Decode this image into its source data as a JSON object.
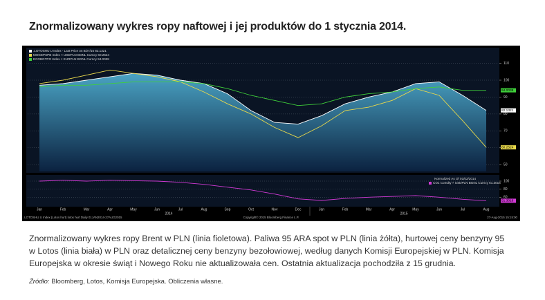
{
  "title": "Znormalizowany wykres ropy naftowej i jej produktów do 1 stycznia 2014.",
  "chart_data": [
    {
      "type": "line",
      "categories": [
        "Jan",
        "Feb",
        "Mar",
        "Apr",
        "May",
        "Jun",
        "Jul",
        "Aug",
        "Sep",
        "Oct",
        "Nov",
        "Dec",
        "Jan",
        "Feb",
        "Mar",
        "Apr",
        "May",
        "Jun",
        "Jul",
        "Aug"
      ],
      "years": [
        "2014",
        "2015"
      ],
      "ylim": [
        46,
        118
      ],
      "yticks": [
        110,
        100,
        90,
        80,
        70,
        60,
        50
      ],
      "grid": true,
      "series": [
        {
          "name": ".LOTOSHU U Index - Last Price on 8/27/15 82.1321",
          "color": "#ffffff",
          "area": true,
          "values": [
            97,
            98,
            100,
            102,
            104,
            103,
            100,
            98,
            92,
            82,
            75,
            74,
            79,
            86,
            90,
            93,
            98,
            99,
            91,
            82.1321
          ]
        },
        {
          "name": "MOGEPSPB Index × USDPLN BGNL Curncy 60.2524",
          "color": "#e8d84a",
          "values": [
            98,
            100,
            103,
            106,
            104,
            102,
            99,
            93,
            86,
            80,
            72,
            66,
            73,
            82,
            84,
            88,
            95,
            91,
            76,
            60.2524
          ]
        },
        {
          "name": "ECOBGTPO Index × EURPLN BGNL Curncy 94.0038",
          "color": "#3fcf3a",
          "values": [
            96,
            97,
            97,
            98,
            99,
            99,
            99,
            98,
            95,
            91,
            88,
            85,
            86,
            90,
            92,
            93,
            95,
            96,
            94,
            94.0038
          ]
        }
      ],
      "footer": [
        ".LOTOSHU U Index (Lotos hurt) lotos hurt Daily 01JAN2014-27AUG2015",
        "Copyright© 2015 Bloomberg Finance L.P.",
        "27-Aug-2015 15:15:00"
      ]
    },
    {
      "type": "line",
      "title": "Normalized As Of 01/02/2014",
      "ylim": [
        40,
        112
      ],
      "yticks": [
        100,
        80,
        60
      ],
      "grid": true,
      "series": [
        {
          "name": "CO1 Comdty × USDPLN BGNL Curncy 51.3016",
          "color": "#d23ad6",
          "values": [
            100,
            102,
            100,
            102,
            101,
            100,
            97,
            92,
            85,
            78,
            68,
            56,
            52,
            57,
            60,
            62,
            64,
            60,
            55,
            51.3016
          ]
        }
      ]
    }
  ],
  "caption": "Znormalizowany wykres ropy Brent w PLN (linia fioletowa). Paliwa 95 ARA spot w PLN (linia żółta), hurtowej ceny benzyny 95 w Lotos (linia biała) w PLN oraz detalicznej ceny benzyny bezołowiowej, według danych Komisji Europejskiej w PLN. Komisja Europejska w okresie świąt i Nowego Roku nie aktualizowała cen. Ostatnia aktualizacja pochodziła z 15 grudnia.",
  "source": {
    "label": "Źródło:",
    "text": "Bloomberg, Lotos, Komisja Europejska. Obliczenia własne."
  }
}
